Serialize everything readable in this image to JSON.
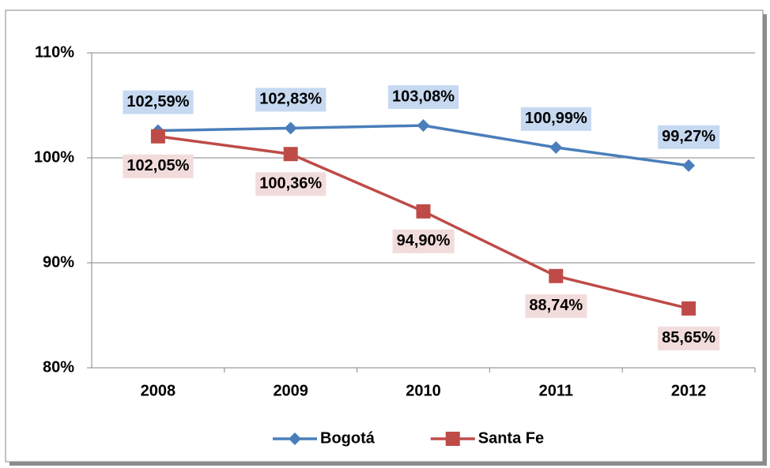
{
  "chart_data": {
    "type": "line",
    "categories": [
      "2008",
      "2009",
      "2010",
      "2011",
      "2012"
    ],
    "series": [
      {
        "name": "Bogotá",
        "color": "#4a7ebb",
        "label_bg": "#c6d9f1",
        "values": [
          102.59,
          102.83,
          103.08,
          100.99,
          99.27
        ],
        "value_labels": [
          "102,59%",
          "102,83%",
          "103,08%",
          "100,99%",
          "99,27%"
        ]
      },
      {
        "name": "Santa Fe",
        "color": "#be4b48",
        "label_bg": "#f2dcdb",
        "values": [
          102.05,
          100.36,
          94.9,
          88.74,
          85.65
        ],
        "value_labels": [
          "102,05%",
          "100,36%",
          "94,90%",
          "88,74%",
          "85,65%"
        ]
      }
    ],
    "ylim": [
      80,
      110
    ],
    "yticks": [
      {
        "value": 80,
        "label": "80%"
      },
      {
        "value": 90,
        "label": "90%"
      },
      {
        "value": 100,
        "label": "100%"
      },
      {
        "value": 110,
        "label": "110%"
      }
    ],
    "grid": true,
    "legend": "bottom"
  }
}
